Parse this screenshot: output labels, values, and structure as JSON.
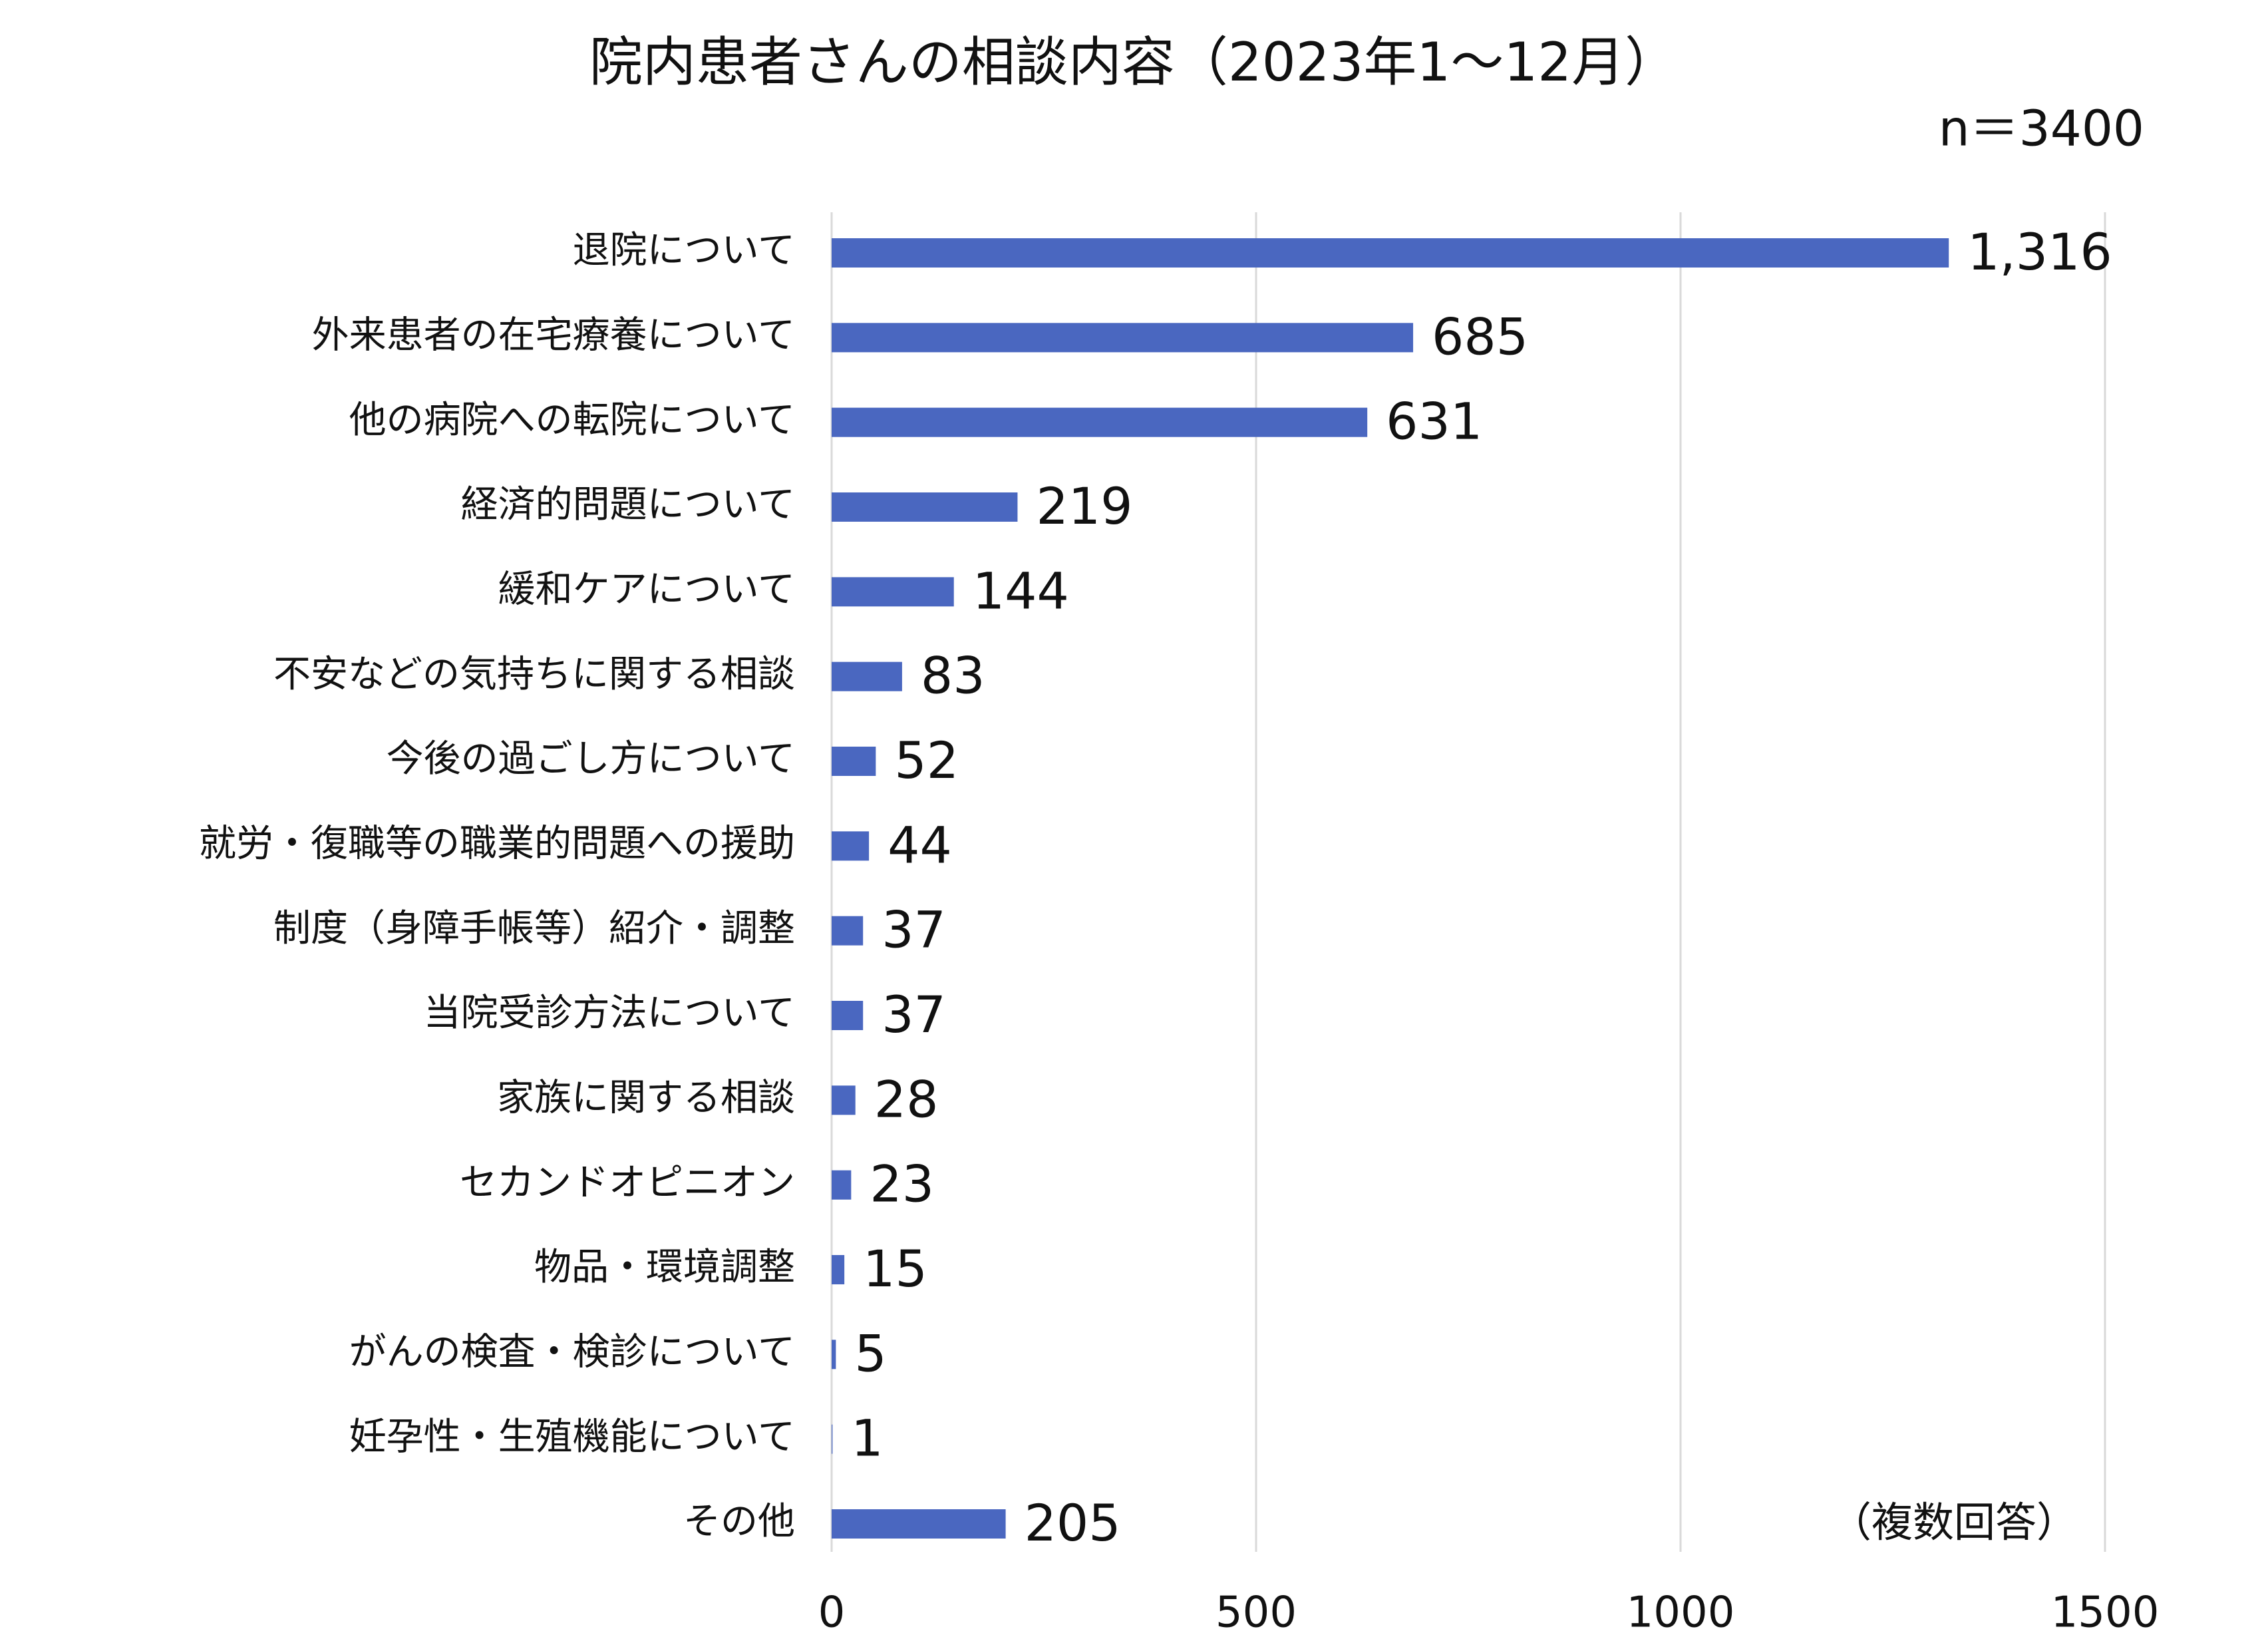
{
  "chart_data": {
    "type": "bar",
    "orientation": "horizontal",
    "title": "院内患者さんの相談内容（2023年1～12月）",
    "subtitle": "n＝3400",
    "annotation": "（複数回答）",
    "categories": [
      "退院について",
      "外来患者の在宅療養について",
      "他の病院への転院について",
      "経済的問題について",
      "緩和ケアについて",
      "不安などの気持ちに関する相談",
      "今後の過ごし方について",
      "就労・復職等の職業的問題への援助",
      "制度（身障手帳等）紹介・調整",
      "当院受診方法について",
      "家族に関する相談",
      "セカンドオピニオン",
      "物品・環境調整",
      "がんの検査・検診について",
      "妊孕性・生殖機能について",
      "その他"
    ],
    "values": [
      1316,
      685,
      631,
      219,
      144,
      83,
      52,
      44,
      37,
      37,
      28,
      23,
      15,
      5,
      1,
      205
    ],
    "value_labels": [
      "1,316",
      "685",
      "631",
      "219",
      "144",
      "83",
      "52",
      "44",
      "37",
      "37",
      "28",
      "23",
      "15",
      "5",
      "1",
      "205"
    ],
    "color": "#4a67c0",
    "xlim": [
      0,
      1500
    ],
    "xticks": [
      0,
      500,
      1000,
      1500
    ],
    "grid": true
  }
}
